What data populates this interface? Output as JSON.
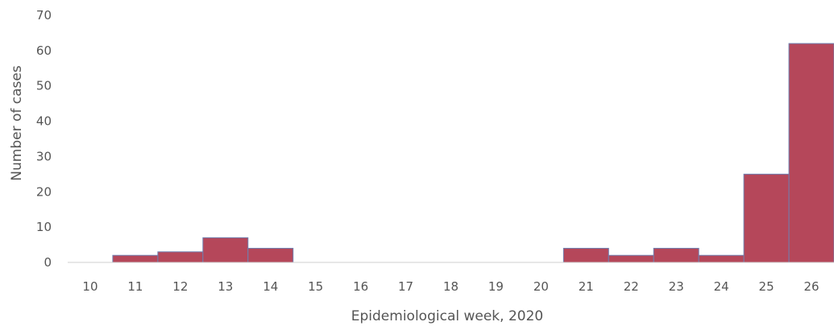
{
  "chart_data": {
    "type": "bar",
    "title": "",
    "xlabel": "Epidemiological week, 2020",
    "ylabel": "Number of cases",
    "categories": [
      "10",
      "11",
      "12",
      "13",
      "14",
      "15",
      "16",
      "17",
      "18",
      "19",
      "20",
      "21",
      "22",
      "23",
      "24",
      "25",
      "26"
    ],
    "values": [
      0,
      2,
      3,
      7,
      4,
      0,
      0,
      0,
      0,
      0,
      0,
      4,
      2,
      4,
      2,
      25,
      62
    ],
    "ylim": [
      0,
      70
    ],
    "yticks": [
      "0",
      "10",
      "20",
      "30",
      "40",
      "50",
      "60",
      "70"
    ],
    "grid": false,
    "bar_color": "#b5475a"
  }
}
